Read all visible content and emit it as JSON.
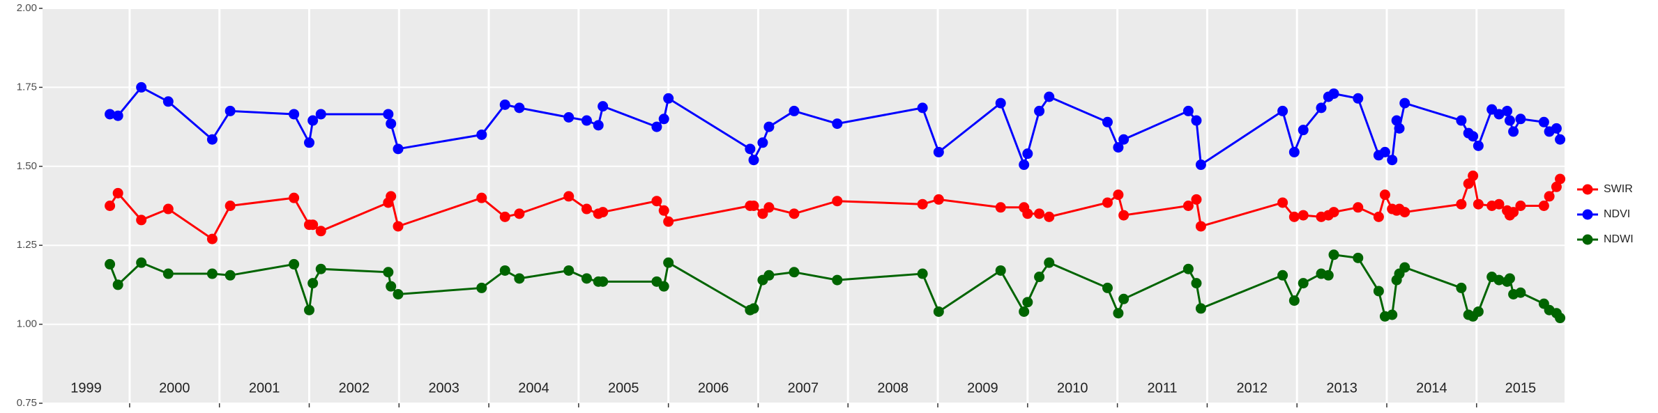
{
  "chart_data": {
    "type": "line",
    "x": [
      1999.78,
      1999.87,
      2000.13,
      2000.43,
      2000.92,
      2001.12,
      2001.83,
      2002.0,
      2002.04,
      2002.13,
      2002.88,
      2002.91,
      2002.99,
      2003.92,
      2004.18,
      2004.34,
      2004.89,
      2005.09,
      2005.22,
      2005.27,
      2005.87,
      2005.95,
      2006.0,
      2006.91,
      2006.95,
      2007.05,
      2007.12,
      2007.4,
      2007.88,
      2008.83,
      2009.01,
      2009.7,
      2009.96,
      2010.0,
      2010.13,
      2010.24,
      2010.89,
      2011.01,
      2011.07,
      2011.79,
      2011.88,
      2011.93,
      2012.84,
      2012.97,
      2013.07,
      2013.27,
      2013.35,
      2013.41,
      2013.68,
      2013.91,
      2013.98,
      2014.06,
      2014.11,
      2014.14,
      2014.2,
      2014.83,
      2014.91,
      2014.96,
      2015.02,
      2015.17,
      2015.25,
      2015.34,
      2015.37,
      2015.41,
      2015.49,
      2015.75,
      2015.81,
      2015.89,
      2015.93
    ],
    "series": [
      {
        "name": "SWIR",
        "color": "#ff0000",
        "values": [
          1.375,
          1.415,
          1.33,
          1.365,
          1.27,
          1.375,
          1.4,
          1.315,
          1.315,
          1.295,
          1.385,
          1.405,
          1.31,
          1.4,
          1.34,
          1.35,
          1.405,
          1.365,
          1.35,
          1.355,
          1.39,
          1.36,
          1.325,
          1.375,
          1.375,
          1.35,
          1.37,
          1.35,
          1.39,
          1.38,
          1.395,
          1.37,
          1.37,
          1.35,
          1.35,
          1.34,
          1.385,
          1.41,
          1.345,
          1.375,
          1.395,
          1.31,
          1.385,
          1.34,
          1.345,
          1.34,
          1.345,
          1.355,
          1.37,
          1.34,
          1.41,
          1.365,
          1.36,
          1.365,
          1.355,
          1.38,
          1.445,
          1.47,
          1.38,
          1.375,
          1.38,
          1.36,
          1.345,
          1.355,
          1.375,
          1.375,
          1.405,
          1.435,
          1.46
        ]
      },
      {
        "name": "NDVI",
        "color": "#0000ff",
        "values": [
          1.665,
          1.66,
          1.75,
          1.705,
          1.585,
          1.675,
          1.665,
          1.575,
          1.645,
          1.665,
          1.665,
          1.635,
          1.555,
          1.6,
          1.695,
          1.685,
          1.655,
          1.645,
          1.63,
          1.69,
          1.625,
          1.65,
          1.715,
          1.555,
          1.52,
          1.575,
          1.625,
          1.675,
          1.635,
          1.685,
          1.545,
          1.7,
          1.505,
          1.54,
          1.675,
          1.72,
          1.64,
          1.56,
          1.585,
          1.675,
          1.645,
          1.505,
          1.675,
          1.545,
          1.615,
          1.685,
          1.72,
          1.73,
          1.715,
          1.535,
          1.545,
          1.52,
          1.645,
          1.62,
          1.7,
          1.645,
          1.605,
          1.595,
          1.565,
          1.68,
          1.665,
          1.675,
          1.645,
          1.61,
          1.65,
          1.64,
          1.61,
          1.62,
          1.585
        ]
      },
      {
        "name": "NDWI",
        "color": "#006400",
        "values": [
          1.19,
          1.125,
          1.195,
          1.16,
          1.16,
          1.155,
          1.19,
          1.045,
          1.13,
          1.175,
          1.165,
          1.12,
          1.095,
          1.115,
          1.17,
          1.145,
          1.17,
          1.145,
          1.135,
          1.135,
          1.135,
          1.12,
          1.195,
          1.045,
          1.05,
          1.14,
          1.155,
          1.165,
          1.14,
          1.16,
          1.04,
          1.17,
          1.04,
          1.07,
          1.15,
          1.195,
          1.115,
          1.035,
          1.08,
          1.175,
          1.13,
          1.05,
          1.155,
          1.075,
          1.13,
          1.16,
          1.155,
          1.22,
          1.21,
          1.105,
          1.025,
          1.03,
          1.14,
          1.16,
          1.18,
          1.115,
          1.03,
          1.025,
          1.04,
          1.15,
          1.14,
          1.135,
          1.145,
          1.095,
          1.1,
          1.065,
          1.045,
          1.035,
          1.02
        ]
      }
    ],
    "xlim": [
      1999.03,
      2015.98
    ],
    "xticks": [
      2000,
      2001,
      2002,
      2003,
      2004,
      2005,
      2006,
      2007,
      2008,
      2009,
      2010,
      2011,
      2012,
      2013,
      2014,
      2015
    ],
    "year_labels": [
      "1999",
      "2000",
      "2001",
      "2002",
      "2003",
      "2004",
      "2005",
      "2006",
      "2007",
      "2008",
      "2009",
      "2010",
      "2011",
      "2012",
      "2013",
      "2014",
      "2015"
    ],
    "ylim": [
      0.75,
      2.0
    ],
    "yticks": [
      {
        "value": 0.75,
        "label": "0.75"
      },
      {
        "value": 1.0,
        "label": "1.00"
      },
      {
        "value": 1.25,
        "label": "1.25"
      },
      {
        "value": 1.5,
        "label": "1.50"
      },
      {
        "value": 1.75,
        "label": "1.75"
      },
      {
        "value": 2.0,
        "label": "2.00"
      }
    ],
    "grid": true,
    "legend": "right"
  }
}
